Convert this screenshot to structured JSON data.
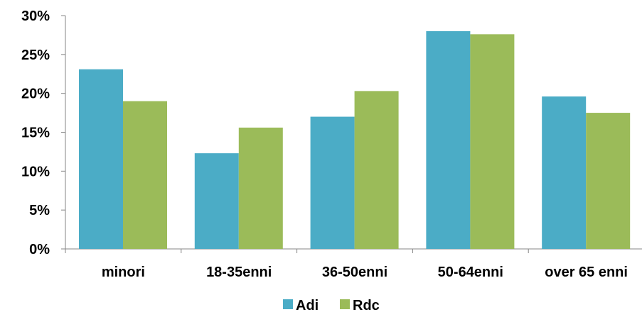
{
  "chart_data": {
    "type": "bar",
    "categories": [
      "minori",
      "18-35enni",
      "36-50enni",
      "50-64enni",
      "over 65 enni"
    ],
    "series": [
      {
        "name": "Adi",
        "color": "#4bacc6",
        "values": [
          23.1,
          12.3,
          17.0,
          28.0,
          19.6
        ]
      },
      {
        "name": "Rdc",
        "color": "#9bbb59",
        "values": [
          19.0,
          15.6,
          20.3,
          27.6,
          17.5
        ]
      }
    ],
    "y_ticks": [
      "0%",
      "5%",
      "10%",
      "15%",
      "20%",
      "25%",
      "30%"
    ],
    "ylim": [
      0,
      30
    ],
    "y_unit": "%",
    "grid": false,
    "legend_position": "bottom"
  }
}
